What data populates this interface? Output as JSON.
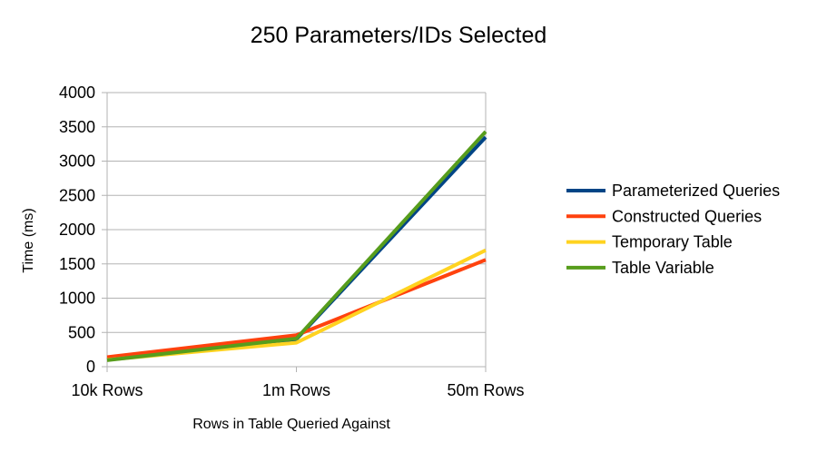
{
  "chart_data": {
    "type": "line",
    "title": "250 Parameters/IDs Selected",
    "xlabel": "Rows in Table Queried Against",
    "ylabel": "Time (ms)",
    "categories": [
      "10k Rows",
      "1m Rows",
      "50m Rows"
    ],
    "ylim": [
      0,
      4000
    ],
    "yticks": [
      0,
      500,
      1000,
      1500,
      2000,
      2500,
      3000,
      3500,
      4000
    ],
    "grid": true,
    "legend_position": "right",
    "series": [
      {
        "name": "Parameterized Queries",
        "color": "#004586",
        "values": [
          110,
          400,
          3350
        ]
      },
      {
        "name": "Constructed Queries",
        "color": "#ff420e",
        "values": [
          140,
          460,
          1560
        ]
      },
      {
        "name": "Temporary Table",
        "color": "#ffd320",
        "values": [
          100,
          350,
          1700
        ]
      },
      {
        "name": "Table Variable",
        "color": "#579d1c",
        "values": [
          95,
          410,
          3430
        ]
      }
    ]
  }
}
